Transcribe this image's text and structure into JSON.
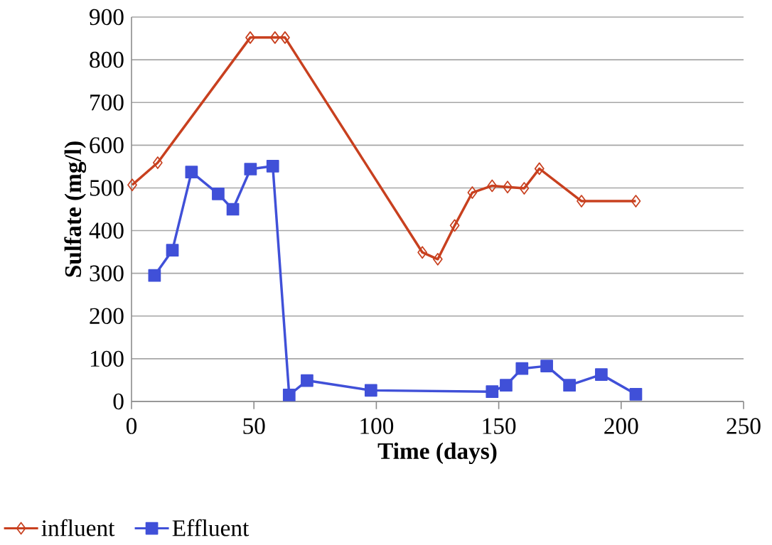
{
  "chart_data": {
    "type": "line",
    "xlabel": "Time (days)",
    "ylabel": "Sulfate (mg/l)",
    "xlim": [
      0,
      250
    ],
    "xticks": [
      0,
      50,
      100,
      150,
      200,
      250
    ],
    "ylim": [
      0,
      900
    ],
    "yticks": [
      0,
      100,
      200,
      300,
      400,
      500,
      600,
      700,
      800,
      900
    ],
    "grid": "y",
    "legend": "bottom",
    "line_style": "solid",
    "series": [
      {
        "name": "influent",
        "color": "#c8401f",
        "marker": "diamond",
        "x": [
          0.3,
          10.7,
          48.5,
          58.6,
          62.7,
          118.8,
          125.1,
          132,
          139.2,
          147.3,
          153.6,
          160.4,
          166.6,
          183.8,
          206
        ],
        "values": [
          507,
          559,
          852,
          852,
          852,
          349,
          333,
          412,
          489,
          505,
          502,
          499,
          545,
          469,
          469
        ]
      },
      {
        "name": "Effluent",
        "color": "#4050d8",
        "marker": "square",
        "x": [
          9.4,
          16.7,
          24.5,
          35.4,
          41.4,
          48.6,
          57.7,
          64.4,
          71.7,
          97.8,
          147.3,
          153,
          159.5,
          169.6,
          178.9,
          191.9,
          206
        ],
        "values": [
          295,
          354,
          537,
          486,
          450,
          544,
          551,
          15,
          49,
          26,
          23,
          38,
          77,
          83,
          38,
          63,
          17
        ]
      }
    ]
  }
}
